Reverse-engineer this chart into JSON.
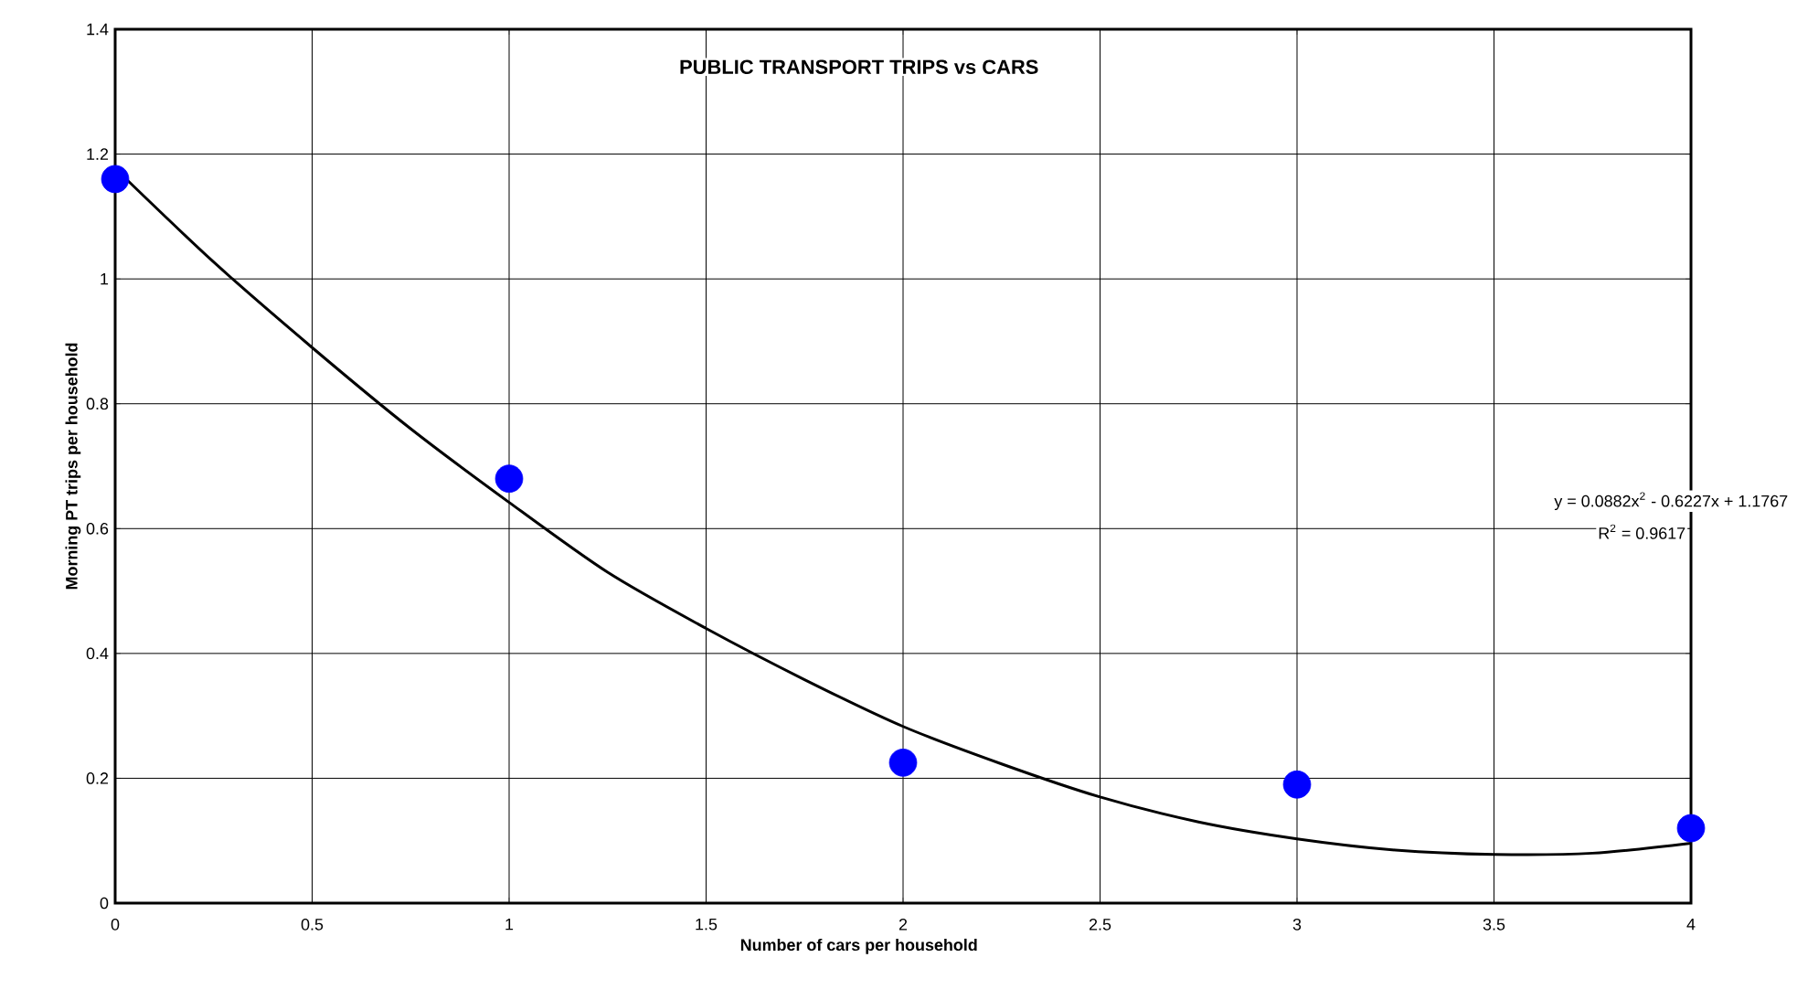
{
  "chart_data": {
    "type": "scatter",
    "title": "PUBLIC TRANSPORT TRIPS vs CARS",
    "xlabel": "Number of cars per household",
    "ylabel": "Morning PT trips per household",
    "xlim": [
      0,
      4
    ],
    "ylim": [
      0,
      1.4
    ],
    "xticks": [
      0,
      0.5,
      1,
      1.5,
      2,
      2.5,
      3,
      3.5,
      4
    ],
    "yticks": [
      0,
      0.2,
      0.4,
      0.6,
      0.8,
      1,
      1.2,
      1.4
    ],
    "grid": true,
    "series": [
      {
        "color": "#0000ff",
        "marker": "circle",
        "x": [
          0,
          1,
          2,
          3,
          4
        ],
        "values": [
          1.16,
          0.68,
          0.225,
          0.19,
          0.12
        ]
      },
      {
        "type": "line",
        "color": "#000000",
        "marker": "none",
        "line_style": "solid",
        "x": [
          0,
          0.25,
          0.5,
          0.75,
          1,
          1.25,
          1.5,
          1.75,
          2,
          2.25,
          2.5,
          2.75,
          3,
          3.25,
          3.5,
          3.75,
          4
        ],
        "values": [
          1.177,
          1.027,
          0.89,
          0.76,
          0.642,
          0.53,
          0.44,
          0.358,
          0.283,
          0.223,
          0.17,
          0.13,
          0.103,
          0.085,
          0.078,
          0.08,
          0.096
        ]
      }
    ],
    "annotations": [
      "y = 0.0882x$^{2}$ - 0.6227x + 1.1767",
      "R$^{2}$ = 0.9617"
    ]
  }
}
